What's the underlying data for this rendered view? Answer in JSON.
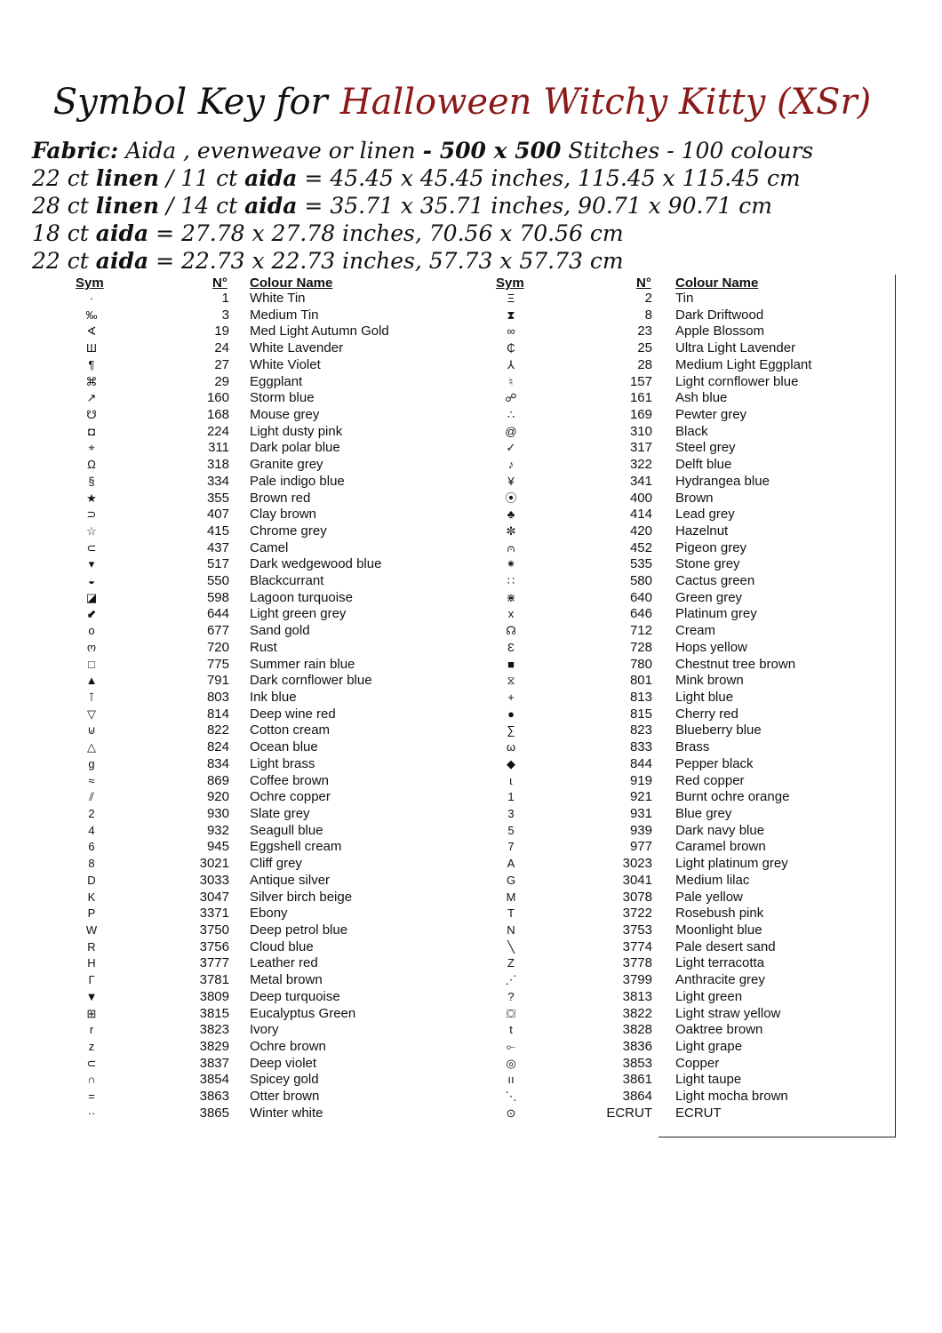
{
  "title": {
    "prefix": "Symbol Key for",
    "name": "Halloween Witchy Kitty (XSr)",
    "name_color": "#8b1a1a"
  },
  "fabric": {
    "line1": {
      "label": "Fabric:",
      "a": " Aida , evenweave or  linen ",
      "b": "- 500 x 500",
      "c": " Stitches - 100 colours"
    },
    "line2": {
      "a": "22 ct ",
      "b": "linen",
      "c": " / 11 ct ",
      "d": "aida",
      "e": " = 45.45 x 45.45 inches, 115.45 x 115.45 cm"
    },
    "line3": {
      "a": "28 ct ",
      "b": "linen",
      "c": " / 14 ct ",
      "d": "aida",
      "e": " = 35.71 x 35.71 inches, 90.71 x 90.71 cm"
    },
    "line4": {
      "a": "18 ct ",
      "d": "aida",
      "e": "  = 27.78 x 27.78 inches, 70.56 x 70.56 cm"
    },
    "line5": {
      "a": "22 ct ",
      "d": "aida",
      "e": " = 22.73 x 22.73 inches, 57.73 x 57.73 cm"
    }
  },
  "headers": {
    "sym": "Sym",
    "num": "N°",
    "name": "Colour Name"
  },
  "left": [
    [
      "·",
      "1",
      "White Tin"
    ],
    [
      "‰",
      "3",
      "Medium Tin"
    ],
    [
      "∢",
      "19",
      "Med Light Autumn Gold"
    ],
    [
      "Ш",
      "24",
      "White Lavender"
    ],
    [
      "¶",
      "27",
      "White Violet"
    ],
    [
      "⌘",
      "29",
      "Eggplant"
    ],
    [
      "↗",
      "160",
      "Storm blue"
    ],
    [
      "☋",
      "168",
      "Mouse grey"
    ],
    [
      "◘",
      "224",
      "Light dusty pink"
    ],
    [
      "⌖",
      "311",
      "Dark polar blue"
    ],
    [
      "Ω",
      "318",
      "Granite grey"
    ],
    [
      "§",
      "334",
      "Pale indigo blue"
    ],
    [
      "★",
      "355",
      "Brown red"
    ],
    [
      "⊃",
      "407",
      "Clay brown"
    ],
    [
      "☆",
      "415",
      "Chrome grey"
    ],
    [
      "⊂",
      "437",
      "Camel"
    ],
    [
      "▾",
      "517",
      "Dark wedgewood blue"
    ],
    [
      "◒",
      "550",
      "Blackcurrant"
    ],
    [
      "◪",
      "598",
      "Lagoon turquoise"
    ],
    [
      "⬋",
      "644",
      "Light green grey"
    ],
    [
      "o",
      "677",
      "Sand gold"
    ],
    [
      "ო",
      "720",
      "Rust"
    ],
    [
      "□",
      "775",
      "Summer rain blue"
    ],
    [
      "▲",
      "791",
      "Dark cornflower blue"
    ],
    [
      "⊺",
      "803",
      "Ink blue"
    ],
    [
      "▽",
      "814",
      "Deep wine red"
    ],
    [
      "⊍",
      "822",
      "Cotton cream"
    ],
    [
      "△",
      "824",
      "Ocean blue"
    ],
    [
      "g",
      "834",
      "Light brass"
    ],
    [
      "≈",
      "869",
      "Coffee brown"
    ],
    [
      "⫽",
      "920",
      "Ochre copper"
    ],
    [
      "2",
      "930",
      "Slate grey"
    ],
    [
      "4",
      "932",
      "Seagull blue"
    ],
    [
      "6",
      "945",
      "Eggshell cream"
    ],
    [
      "8",
      "3021",
      "Cliff grey"
    ],
    [
      "D",
      "3033",
      "Antique silver"
    ],
    [
      "K",
      "3047",
      "Silver birch beige"
    ],
    [
      "P",
      "3371",
      "Ebony"
    ],
    [
      "W",
      "3750",
      "Deep petrol blue"
    ],
    [
      "R",
      "3756",
      "Cloud blue"
    ],
    [
      "H",
      "3777",
      "Leather red"
    ],
    [
      "Г",
      "3781",
      "Metal brown"
    ],
    [
      "▼",
      "3809",
      "Deep turquoise"
    ],
    [
      "⊞",
      "3815",
      "Eucalyptus Green"
    ],
    [
      "r",
      "3823",
      "Ivory"
    ],
    [
      "z",
      "3829",
      "Ochre brown"
    ],
    [
      "⊂",
      "3837",
      "Deep violet"
    ],
    [
      "∩",
      "3854",
      "Spicey gold"
    ],
    [
      "=",
      "3863",
      "Otter brown"
    ],
    [
      "··",
      "3865",
      "Winter white"
    ]
  ],
  "right": [
    [
      "Ξ",
      "2",
      "Tin"
    ],
    [
      "⧗",
      "8",
      "Dark Driftwood"
    ],
    [
      "∞",
      "23",
      "Apple Blossom"
    ],
    [
      "₵",
      "25",
      "Ultra Light Lavender"
    ],
    [
      "⅄",
      "28",
      "Medium Light Eggplant"
    ],
    [
      "♮",
      "157",
      "Light cornflower blue"
    ],
    [
      "☍",
      "161",
      "Ash blue"
    ],
    [
      "∴",
      "169",
      "Pewter grey"
    ],
    [
      "@",
      "310",
      "Black"
    ],
    [
      "✓",
      "317",
      "Steel grey"
    ],
    [
      "♪",
      "322",
      "Delft blue"
    ],
    [
      "¥",
      "341",
      "Hydrangea blue"
    ],
    [
      "⦿",
      "400",
      "Brown"
    ],
    [
      "♣",
      "414",
      "Lead grey"
    ],
    [
      "✼",
      "420",
      "Hazelnut"
    ],
    [
      "⩀",
      "452",
      "Pigeon grey"
    ],
    [
      "⁕",
      "535",
      "Stone grey"
    ],
    [
      "∷",
      "580",
      "Cactus green"
    ],
    [
      "⋇",
      "640",
      "Green grey"
    ],
    [
      "x",
      "646",
      "Platinum grey"
    ],
    [
      "☊",
      "712",
      "Cream"
    ],
    [
      "Ɛ",
      "728",
      "Hops yellow"
    ],
    [
      "■",
      "780",
      "Chestnut tree brown"
    ],
    [
      "⧖",
      "801",
      "Mink brown"
    ],
    [
      "+",
      "813",
      "Light blue"
    ],
    [
      "●",
      "815",
      "Cherry red"
    ],
    [
      "∑",
      "823",
      "Blueberry blue"
    ],
    [
      "ω",
      "833",
      "Brass"
    ],
    [
      "◆",
      "844",
      "Pepper black"
    ],
    [
      "ɩ",
      "919",
      "Red copper"
    ],
    [
      "1",
      "921",
      "Burnt ochre orange"
    ],
    [
      "3",
      "931",
      "Blue grey"
    ],
    [
      "5",
      "939",
      "Dark navy blue"
    ],
    [
      "7",
      "977",
      "Caramel brown"
    ],
    [
      "A",
      "3023",
      "Light platinum grey"
    ],
    [
      "G",
      "3041",
      "Medium lilac"
    ],
    [
      "M",
      "3078",
      "Pale yellow"
    ],
    [
      "T",
      "3722",
      "Rosebush pink"
    ],
    [
      "N",
      "3753",
      "Moonlight blue"
    ],
    [
      "╲",
      "3774",
      "Pale desert sand"
    ],
    [
      "Z",
      "3778",
      "Light terracotta"
    ],
    [
      "⋰",
      "3799",
      "Anthracite grey"
    ],
    [
      "?",
      "3813",
      "Light green"
    ],
    [
      "⛋",
      "3822",
      "Light straw yellow"
    ],
    [
      "t",
      "3828",
      "Oaktree brown"
    ],
    [
      "⟜",
      "3836",
      "Light grape"
    ],
    [
      "◎",
      "3853",
      "Copper"
    ],
    [
      "ıı",
      "3861",
      "Light taupe"
    ],
    [
      "⋱",
      "3864",
      "Light mocha brown"
    ],
    [
      "⊙",
      "ECRUT",
      "ECRUT"
    ]
  ]
}
